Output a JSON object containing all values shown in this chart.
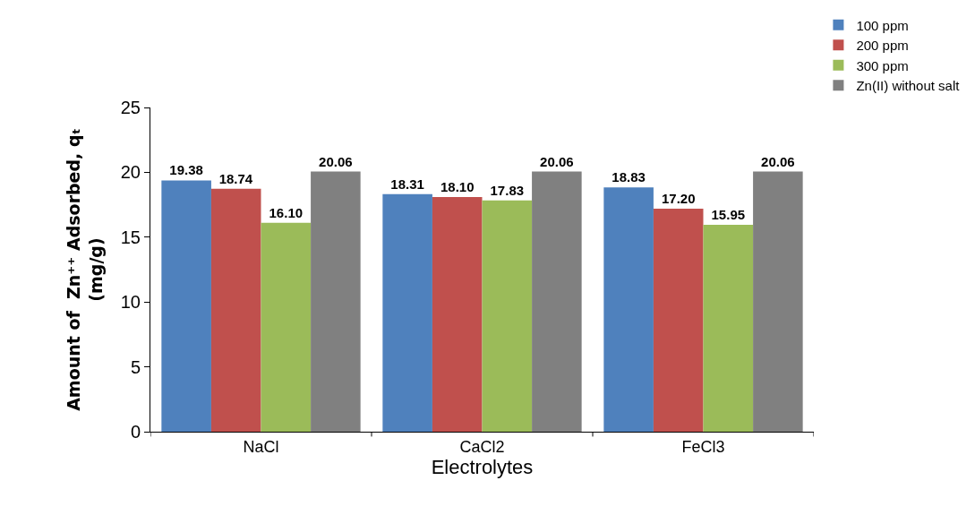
{
  "chart_data": {
    "type": "bar",
    "xlabel": "Electrolytes",
    "ylabel": "Amount of  Zn⁺⁺ Adsorbed, qₜ\n(mg/g)",
    "categories": [
      "NaCl",
      "CaCl2",
      "FeCl3"
    ],
    "series": [
      {
        "name": "100 ppm",
        "color": "#4f81bd",
        "values": [
          19.38,
          18.31,
          18.83
        ],
        "value_labels": [
          "19.38",
          "18.31",
          "18.83"
        ]
      },
      {
        "name": "200 ppm",
        "color": "#c0504d",
        "values": [
          18.74,
          18.1,
          17.2
        ],
        "value_labels": [
          "18.74",
          "18.10",
          "17.20"
        ]
      },
      {
        "name": "300 ppm",
        "color": "#9bbb59",
        "values": [
          16.1,
          17.83,
          15.95
        ],
        "value_labels": [
          "16.10",
          "17.83",
          "15.95"
        ]
      },
      {
        "name": "Zn(II) without salt",
        "color": "#808080",
        "values": [
          20.06,
          20.06,
          20.06
        ],
        "value_labels": [
          "20.06",
          "20.06",
          "20.06"
        ]
      }
    ],
    "ylim": [
      0,
      25
    ],
    "yticks": [
      0,
      5,
      10,
      15,
      20,
      25
    ],
    "legend": "top right"
  }
}
